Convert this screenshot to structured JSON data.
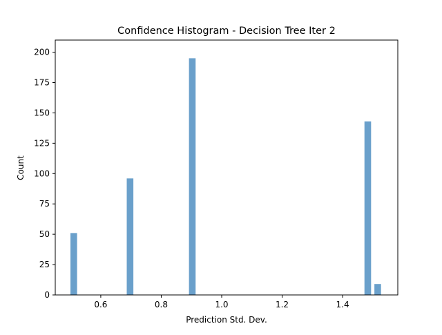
{
  "chart_data": {
    "type": "bar",
    "title": "Confidence Histogram - Decision Tree Iter 2",
    "xlabel": "Prediction Std. Dev.",
    "ylabel": "Count",
    "xlim": [
      0.4494,
      1.5826
    ],
    "ylim": [
      0,
      210
    ],
    "xticks": [
      0.6,
      0.8,
      1.0,
      1.2,
      1.4
    ],
    "yticks": [
      0,
      25,
      50,
      75,
      100,
      125,
      150,
      175,
      200
    ],
    "bars": [
      {
        "x0": 0.4997,
        "x1": 0.5216,
        "count": 51
      },
      {
        "x0": 0.6859,
        "x1": 0.7078,
        "count": 96
      },
      {
        "x0": 0.8918,
        "x1": 0.9137,
        "count": 195
      },
      {
        "x0": 1.4723,
        "x1": 1.4942,
        "count": 143
      },
      {
        "x0": 1.5052,
        "x1": 1.5271,
        "count": 9
      }
    ],
    "bar_color": "#6aa0cb",
    "grid": false,
    "legend": false
  }
}
